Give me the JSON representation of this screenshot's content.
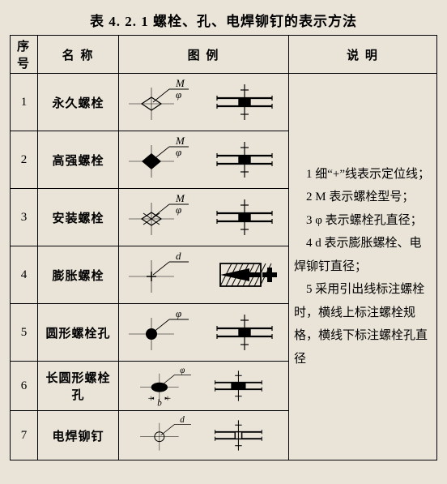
{
  "title": "表 4. 2. 1   螺栓、孔、电焊铆钉的表示方法",
  "headers": {
    "idx": "序号",
    "name": "名  称",
    "figure": "图  例",
    "desc": "说  明"
  },
  "rows": [
    {
      "idx": "1",
      "name": "永久螺栓",
      "label1": "M",
      "label2": "φ",
      "label3": "",
      "symbol": "diamond-open"
    },
    {
      "idx": "2",
      "name": "高强螺栓",
      "label1": "M",
      "label2": "φ",
      "label3": "",
      "symbol": "diamond-solid"
    },
    {
      "idx": "3",
      "name": "安装螺栓",
      "label1": "M",
      "label2": "φ",
      "label3": "",
      "symbol": "diamond-x"
    },
    {
      "idx": "4",
      "name": "膨胀螺栓",
      "label1": "d",
      "label2": "",
      "label3": "",
      "symbol": "cross"
    },
    {
      "idx": "5",
      "name": "圆形螺栓孔",
      "label1": "φ",
      "label2": "",
      "label3": "",
      "symbol": "circle-solid"
    },
    {
      "idx": "6",
      "name": "长圆形螺栓孔",
      "label1": "φ",
      "label2": "",
      "label3": "b",
      "symbol": "ellipse-solid"
    },
    {
      "idx": "7",
      "name": "电焊铆钉",
      "label1": "d",
      "label2": "",
      "label3": "",
      "symbol": "circle-cross"
    }
  ],
  "desc": [
    "1  细“+”线表示定位线；",
    "2  M 表示螺栓型号；",
    "3  φ 表示螺栓孔直径；",
    "4  d 表示膨胀螺栓、电焊铆钉直径；",
    "5  采用引出线标注螺栓时，横线上标注螺栓规格，横线下标注螺栓孔直径"
  ],
  "style": {
    "stroke": "#000",
    "thin": 0.6,
    "bold": 2.2
  }
}
